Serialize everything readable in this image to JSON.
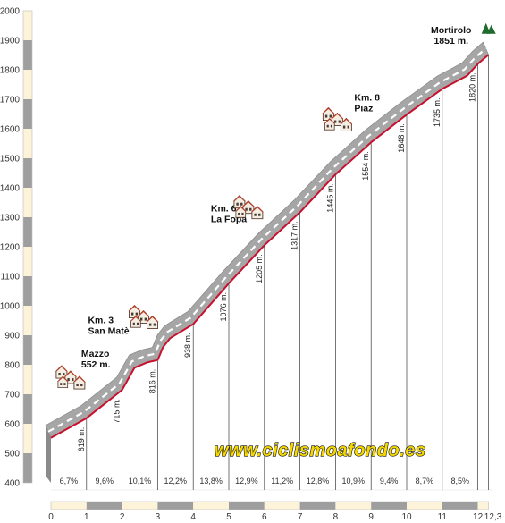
{
  "chart_data": {
    "type": "area",
    "title": "",
    "xlabel": "",
    "ylabel": "",
    "xlim": [
      0,
      12.3
    ],
    "ylim": [
      400,
      2000
    ],
    "y_ticks": [
      400,
      500,
      600,
      700,
      800,
      900,
      1000,
      1100,
      1200,
      1300,
      1400,
      1500,
      1600,
      1700,
      1800,
      1900,
      2000
    ],
    "x_ticks": [
      "0",
      "1",
      "2",
      "3",
      "4",
      "5",
      "6",
      "7",
      "8",
      "9",
      "10",
      "11",
      "12",
      "12,3"
    ],
    "profile": [
      {
        "km": 0,
        "alt": 552
      },
      {
        "km": 1,
        "alt": 619
      },
      {
        "km": 2,
        "alt": 715
      },
      {
        "km": 2.35,
        "alt": 790
      },
      {
        "km": 2.7,
        "alt": 808
      },
      {
        "km": 3,
        "alt": 816
      },
      {
        "km": 3.15,
        "alt": 860
      },
      {
        "km": 3.35,
        "alt": 890
      },
      {
        "km": 4,
        "alt": 938
      },
      {
        "km": 5,
        "alt": 1076
      },
      {
        "km": 6,
        "alt": 1205
      },
      {
        "km": 7,
        "alt": 1317
      },
      {
        "km": 8,
        "alt": 1445
      },
      {
        "km": 9,
        "alt": 1554
      },
      {
        "km": 10,
        "alt": 1648
      },
      {
        "km": 11,
        "alt": 1735
      },
      {
        "km": 11.7,
        "alt": 1780
      },
      {
        "km": 12,
        "alt": 1820
      },
      {
        "km": 12.3,
        "alt": 1851
      }
    ],
    "km_altitudes": [
      {
        "km": 1,
        "label": "619 m."
      },
      {
        "km": 2,
        "label": "715 m."
      },
      {
        "km": 3,
        "label": "816 m."
      },
      {
        "km": 4,
        "label": "938 m."
      },
      {
        "km": 5,
        "label": "1076 m."
      },
      {
        "km": 6,
        "label": "1205 m."
      },
      {
        "km": 7,
        "label": "1317 m."
      },
      {
        "km": 8,
        "label": "1445 m."
      },
      {
        "km": 9,
        "label": "1554 m."
      },
      {
        "km": 10,
        "label": "1648 m."
      },
      {
        "km": 11,
        "label": "1735 m."
      },
      {
        "km": 12,
        "label": "1820 m."
      }
    ],
    "gradients": [
      "6,7%",
      "9,6%",
      "10,1%",
      "12,2%",
      "13,8%",
      "12,9%",
      "11,2%",
      "12,8%",
      "10,9%",
      "9,4%",
      "8,7%",
      "8,5%"
    ],
    "places": [
      {
        "km": 0.55,
        "icon": "houses-icon",
        "line1": "Mazzo",
        "line2": "552 m."
      },
      {
        "km": 2.6,
        "icon": "houses-icon",
        "line1": "Km. 3",
        "line2": "San Matè"
      },
      {
        "km": 5.55,
        "icon": "houses-icon",
        "line1": "Km. 6",
        "line2": "La Fopa"
      },
      {
        "km": 8.05,
        "icon": "houses-icon",
        "line1": "Km. 8",
        "line2": "Piaz"
      },
      {
        "km": 11.35,
        "icon": "summit-icon",
        "line1": "Mortirolo",
        "line2": "1851 m."
      }
    ],
    "watermark": "www.ciclismoafondo.es",
    "colors": {
      "road_red": "#c8102e",
      "road_grey": "#a6a6a6",
      "band_light": "#fdf3d8",
      "band_grey": "#9e9e9e",
      "summit_green": "#1f6b2e",
      "watermark_yellow": "#f5d800"
    }
  }
}
